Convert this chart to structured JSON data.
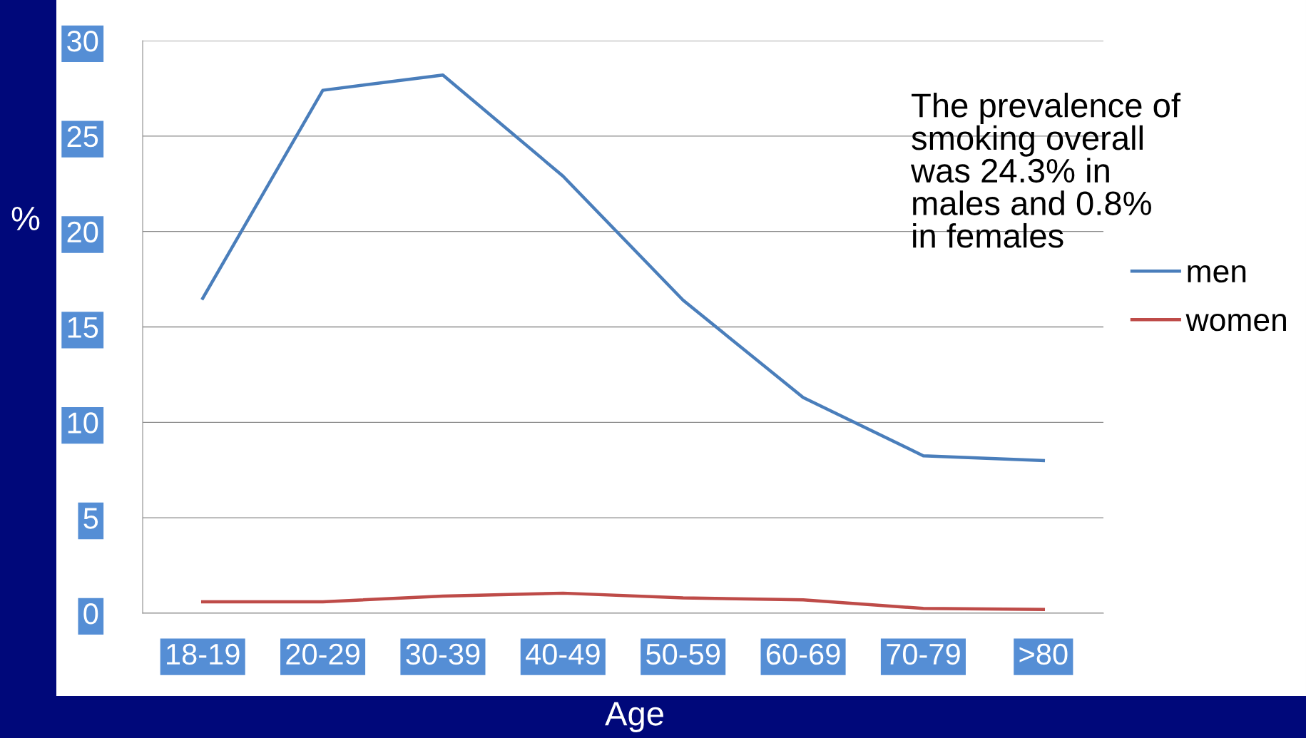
{
  "chart_data": {
    "type": "line",
    "xlabel": "Age",
    "ylabel": "%",
    "categories": [
      "18-19",
      "20-29",
      "30-39",
      "40-49",
      "50-59",
      "60-69",
      "70-79",
      ">80"
    ],
    "series": [
      {
        "name": "men",
        "color": "#4a7ebb",
        "values": [
          16.5,
          27.4,
          28.2,
          22.9,
          16.4,
          11.3,
          8.25,
          8.0
        ]
      },
      {
        "name": "women",
        "color": "#be4b48",
        "values": [
          0.6,
          0.6,
          0.9,
          1.05,
          0.8,
          0.7,
          0.25,
          0.2
        ]
      }
    ],
    "ylim": [
      0,
      30
    ],
    "yticks": [
      0,
      5,
      10,
      15,
      20,
      25,
      30
    ],
    "grid": "y",
    "legend": "right",
    "marker": "none",
    "line_style": "solid",
    "annotations": [
      "The prevalence of\nsmoking overall\nwas 24.3% in\nmales and 0.8%\nin females"
    ]
  }
}
